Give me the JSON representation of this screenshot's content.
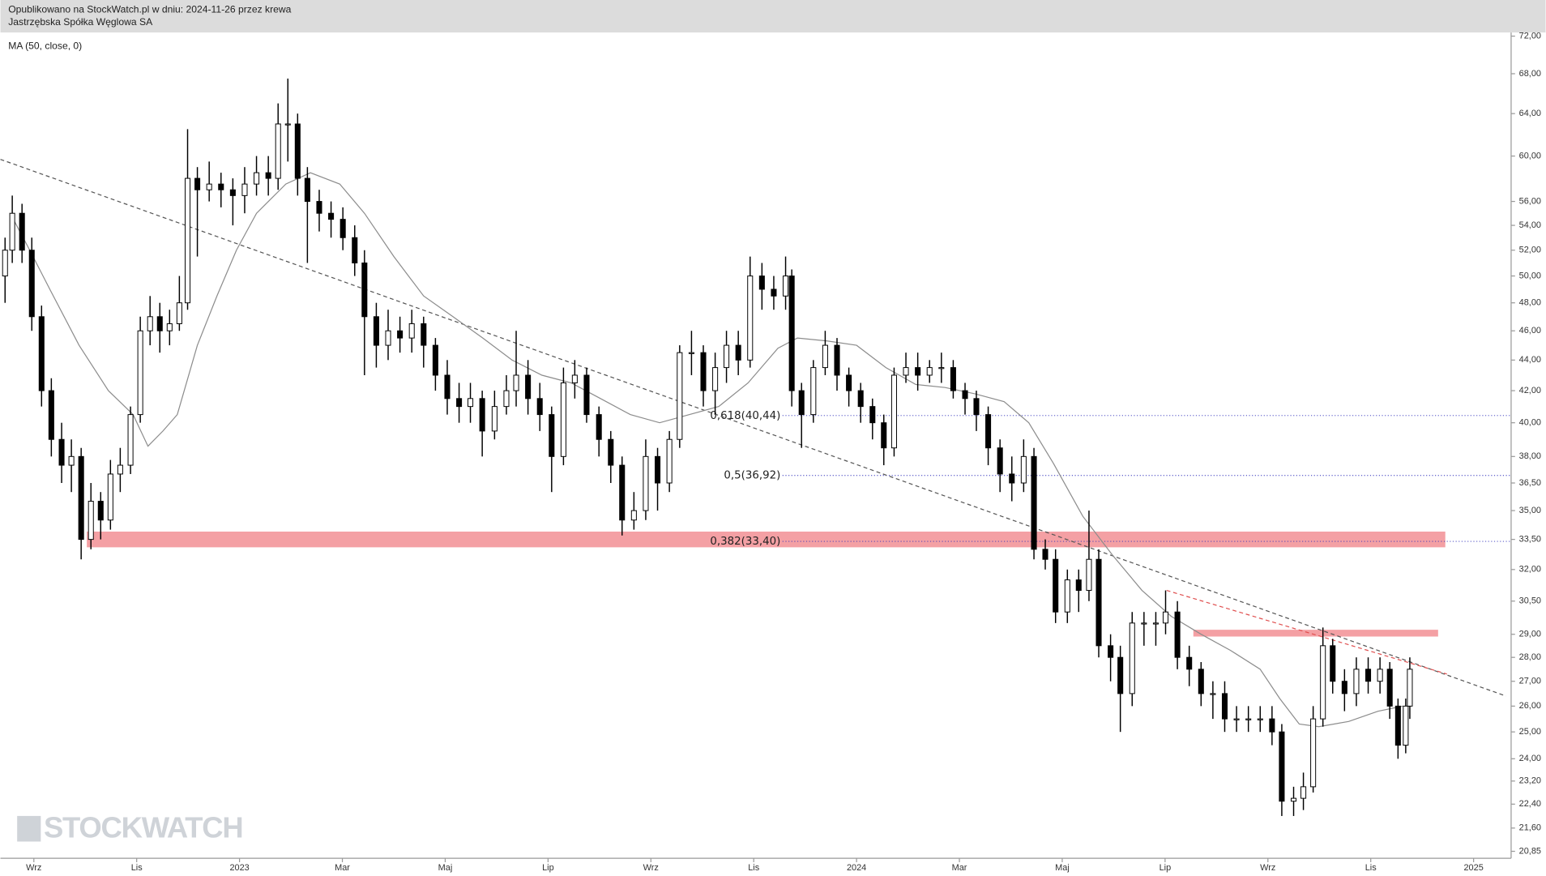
{
  "header": {
    "published": "Opublikowano na StockWatch.pl w dniu: 2024-11-26 przez krewa",
    "instrument": "Jastrzębska Spółka Węglowa SA"
  },
  "watermark": "STOCKWATCH",
  "chart_data": {
    "type": "candlestick",
    "log_scale": true,
    "color": "#000000",
    "x": [
      -0.56,
      -0.42,
      -0.23,
      -0.04,
      0.15,
      0.34,
      0.54,
      0.73,
      0.92,
      1.11,
      1.3,
      1.49,
      1.68,
      1.88,
      2.07,
      2.26,
      2.45,
      2.64,
      2.83,
      2.99,
      3.18,
      3.41,
      3.64,
      3.87,
      4.1,
      4.33,
      4.56,
      4.75,
      4.94,
      5.13,
      5.32,
      5.55,
      5.78,
      6.01,
      6.24,
      6.43,
      6.66,
      6.89,
      7.12,
      7.35,
      7.58,
      7.81,
      8.04,
      8.27,
      8.49,
      8.72,
      8.96,
      9.19,
      9.38,
      9.61,
      9.84,
      10.07,
      10.3,
      10.52,
      10.75,
      10.99,
      11.22,
      11.44,
      11.67,
      11.9,
      12.13,
      12.36,
      12.56,
      12.79,
      13.02,
      13.25,
      13.47,
      13.7,
      13.93,
      14.16,
      14.39,
      14.62,
      14.74,
      14.93,
      15.16,
      15.39,
      15.62,
      15.85,
      16.08,
      16.31,
      16.53,
      16.73,
      16.96,
      17.19,
      17.42,
      17.65,
      17.88,
      18.11,
      18.33,
      18.56,
      18.79,
      19.02,
      19.25,
      19.45,
      19.67,
      19.87,
      20.1,
      20.32,
      20.52,
      20.71,
      20.94,
      21.13,
      21.36,
      21.59,
      21.82,
      22.01,
      22.24,
      22.47,
      22.7,
      22.93,
      23.16,
      23.39,
      23.62,
      23.85,
      24.08,
      24.27,
      24.5,
      24.69,
      24.88,
      25.07,
      25.26,
      25.49,
      25.72,
      25.95,
      26.18,
      26.37,
      26.53,
      26.68,
      26.76
    ],
    "open": [
      50,
      52,
      55,
      52,
      47,
      42,
      39,
      37.5,
      38,
      33.5,
      35.5,
      34.5,
      37,
      37.5,
      40.5,
      46,
      47,
      46,
      46.5,
      48,
      58,
      57,
      57.5,
      57,
      56.5,
      57.5,
      58.5,
      58,
      63,
      63,
      58,
      56,
      55,
      54.5,
      53,
      51,
      47,
      45,
      46,
      45.5,
      46.5,
      45,
      43,
      41.5,
      41,
      41.5,
      39.5,
      41,
      42,
      43,
      41.5,
      40.5,
      38,
      42.5,
      43,
      40.5,
      39,
      37.5,
      34.5,
      35,
      38,
      36.5,
      39,
      44.5,
      44.5,
      42,
      43.5,
      45,
      44,
      50,
      49,
      48.5,
      50,
      42,
      40.5,
      43.5,
      45,
      43,
      42,
      41,
      40,
      38.5,
      43,
      43.5,
      43,
      43.5,
      43.5,
      42,
      41.5,
      40.5,
      38.5,
      37,
      36.5,
      38,
      33,
      32.5,
      30,
      31.5,
      31,
      32.5,
      28.5,
      28,
      26.5,
      29.5,
      29.5,
      29.5,
      30,
      28,
      27.5,
      26.5,
      26.5,
      25.5,
      25.5,
      25.5,
      25.5,
      25,
      22.5,
      22.6,
      23,
      25.5,
      28.5,
      27,
      26.5,
      27.5,
      27,
      27.5,
      26,
      24.5,
      26
    ],
    "high": [
      53,
      56.5,
      55.8,
      53,
      47.8,
      42.8,
      40,
      39,
      38.5,
      36.5,
      36,
      37.8,
      38.5,
      41,
      47,
      48.5,
      48,
      47.5,
      50,
      62.5,
      59,
      59.5,
      58.5,
      58,
      59,
      60,
      60,
      65,
      67.5,
      64,
      59,
      57,
      56,
      55.5,
      54,
      52,
      48,
      47.5,
      47,
      47.5,
      47,
      45.5,
      44,
      42.5,
      42.5,
      42,
      42,
      43,
      46,
      44,
      42.5,
      41,
      43.5,
      44,
      43.5,
      41,
      39.5,
      38,
      36,
      39,
      38.5,
      39.5,
      45,
      46,
      45,
      44.5,
      46,
      46,
      51.5,
      51,
      50,
      51.5,
      50.5,
      42.5,
      44,
      46,
      45.5,
      43.5,
      42.5,
      41.5,
      40.5,
      43.5,
      44.5,
      44.5,
      44,
      44.5,
      44,
      42.5,
      42,
      41,
      39,
      38,
      39,
      38.5,
      33.5,
      33,
      32,
      32,
      35,
      33,
      29,
      28.5,
      30,
      30,
      30,
      31,
      30.5,
      28.5,
      27.8,
      27,
      27,
      26,
      26,
      26,
      26,
      25.3,
      23,
      23.5,
      26,
      29.3,
      28.8,
      27.5,
      28,
      28,
      28,
      27.8,
      26.3,
      26.3,
      28
    ],
    "low": [
      48,
      51,
      51,
      46,
      41,
      38,
      36.5,
      36,
      32.5,
      33,
      33.5,
      34,
      36,
      37,
      40,
      45,
      44.5,
      45,
      46,
      47.5,
      51.5,
      56,
      55.5,
      54,
      55,
      56.5,
      56.5,
      57,
      59.5,
      56.5,
      51,
      53.5,
      53,
      52,
      50,
      43,
      43.5,
      44,
      44.5,
      44.5,
      43.5,
      42,
      40.5,
      40,
      40,
      38,
      39,
      40.5,
      41,
      40.5,
      39.5,
      36,
      37.5,
      41.5,
      40,
      38,
      36.5,
      33.7,
      34,
      34.5,
      35,
      36,
      38.5,
      43,
      41,
      40.5,
      42.5,
      43,
      43.5,
      47.5,
      47.5,
      47.5,
      41,
      38.5,
      40,
      43,
      42,
      41,
      40,
      39,
      37.5,
      38,
      42.5,
      42,
      42.5,
      42.5,
      41.5,
      40.5,
      39.5,
      37.5,
      36,
      35.5,
      36,
      32.5,
      32,
      29.5,
      29.5,
      30,
      30.5,
      28,
      27,
      25,
      26,
      28.5,
      28.5,
      29,
      27.5,
      26.8,
      26,
      25.5,
      25,
      25,
      25,
      25,
      24.5,
      22,
      22,
      22.2,
      22.8,
      25.2,
      26.5,
      25.8,
      26,
      26.5,
      26.5,
      25.5,
      24,
      24.2,
      25.5
    ],
    "close": [
      52,
      55,
      52,
      47,
      42,
      39,
      37.5,
      38,
      33.5,
      35.5,
      34.5,
      37,
      37.5,
      40.5,
      46,
      47,
      46,
      46.5,
      48,
      58,
      57,
      57.5,
      57,
      56.5,
      57.5,
      58.5,
      58,
      63,
      63,
      58,
      56,
      55,
      54.5,
      53,
      51,
      47,
      45,
      46,
      45.5,
      46.5,
      45,
      43,
      41.5,
      41,
      41.5,
      39.5,
      41,
      42,
      43,
      41.5,
      40.5,
      38,
      42.5,
      43,
      40.5,
      39,
      37.5,
      34.5,
      35,
      38,
      36.5,
      39,
      44.5,
      44.5,
      42,
      43.5,
      45,
      44,
      50,
      49,
      48.5,
      50,
      42,
      40.5,
      43.5,
      45,
      43,
      42,
      41,
      40,
      38.5,
      43,
      43.5,
      43,
      43.5,
      43.5,
      42,
      41.5,
      40.5,
      38.5,
      37,
      36.5,
      38,
      33,
      32.5,
      30,
      31.5,
      31,
      32.5,
      28.5,
      28,
      26.5,
      29.5,
      29.5,
      29.5,
      30,
      28,
      27.5,
      26.5,
      26.5,
      25.5,
      25.5,
      25.5,
      25.5,
      25,
      22.5,
      22.6,
      23,
      25.5,
      28.5,
      27,
      26.5,
      27.5,
      27,
      27.5,
      26,
      24.5,
      26,
      27.5
    ],
    "moving_average": {
      "name": "MA (50, close, 0)",
      "color": "#8c8c8c",
      "x": [
        -0.46,
        -0.08,
        0.31,
        0.88,
        1.45,
        1.93,
        2.22,
        2.51,
        2.79,
        3.18,
        3.56,
        3.94,
        4.33,
        4.9,
        5.38,
        5.95,
        6.43,
        7.0,
        7.58,
        8.15,
        8.73,
        9.3,
        9.88,
        10.45,
        11.02,
        11.6,
        12.17,
        12.75,
        13.32,
        13.89,
        14.47,
        14.85,
        15.43,
        16.0,
        16.57,
        17.15,
        17.72,
        18.3,
        18.87,
        19.35,
        19.83,
        20.4,
        20.98,
        21.55,
        22.12,
        22.7,
        23.27,
        23.85,
        24.23,
        24.61,
        24.99,
        25.57,
        26.14,
        26.62
      ],
      "values": [
        55,
        52,
        49,
        45,
        42,
        40.5,
        38.6,
        39.5,
        40.5,
        45,
        48.5,
        52,
        55,
        57.5,
        58.5,
        57.5,
        55,
        51.5,
        48.5,
        47,
        45.5,
        44,
        43,
        42.5,
        41.5,
        40.5,
        40,
        40.5,
        41,
        42.5,
        44.8,
        45.5,
        45.3,
        45,
        43.5,
        42.4,
        42.2,
        41.8,
        41.3,
        40,
        37.6,
        34.7,
        32.7,
        31,
        29.8,
        29,
        28.3,
        27.5,
        26.3,
        25.3,
        25.2,
        25.4,
        25.8,
        26
      ]
    },
    "trendlines": [
      {
        "x": [
          -0.65,
          28.63
        ],
        "y": [
          59.7,
          26.4
        ],
        "color": "#555555"
      },
      {
        "x": [
          22.03,
          27.48
        ],
        "y": [
          31.0,
          27.3
        ],
        "color": "#e05050"
      }
    ],
    "zones": [
      {
        "x": [
          1.03,
          27.45
        ],
        "y": [
          33.1,
          33.9
        ],
        "color": "#f4a0a4"
      },
      {
        "x": [
          22.55,
          27.31
        ],
        "y": [
          28.9,
          29.2
        ],
        "color": "#f4a0a4"
      }
    ],
    "fib_levels": [
      {
        "value": 40.44,
        "label": "0,618(40,44)"
      },
      {
        "value": 36.92,
        "label": "0,5(36,92)"
      },
      {
        "value": 33.4,
        "label": "0,382(33,40)"
      }
    ],
    "fib_start": 14.56,
    "fib_color": "#3333bb",
    "xlim": [
      -0.65,
      28.73
    ],
    "xticks": [
      {
        "value": 0,
        "label": "Wrz"
      },
      {
        "value": 2,
        "label": "Lis"
      },
      {
        "value": 4,
        "label": "2023"
      },
      {
        "value": 6,
        "label": "Mar"
      },
      {
        "value": 8,
        "label": "Maj"
      },
      {
        "value": 10,
        "label": "Lip"
      },
      {
        "value": 12,
        "label": "Wrz"
      },
      {
        "value": 14,
        "label": "Lis"
      },
      {
        "value": 16,
        "label": "2024"
      },
      {
        "value": 18,
        "label": "Mar"
      },
      {
        "value": 20,
        "label": "Maj"
      },
      {
        "value": 22,
        "label": "Lip"
      },
      {
        "value": 24,
        "label": "Wrz"
      },
      {
        "value": 26,
        "label": "Lis"
      },
      {
        "value": 28,
        "label": "2025"
      }
    ],
    "ylim": [
      20.63,
      72.4
    ],
    "yticks": [
      {
        "value": 72,
        "label": "72,00"
      },
      {
        "value": 68,
        "label": "68,00"
      },
      {
        "value": 64,
        "label": "64,00"
      },
      {
        "value": 60,
        "label": "60,00"
      },
      {
        "value": 56,
        "label": "56,00"
      },
      {
        "value": 54,
        "label": "54,00"
      },
      {
        "value": 52,
        "label": "52,00"
      },
      {
        "value": 50,
        "label": "50,00"
      },
      {
        "value": 48,
        "label": "48,00"
      },
      {
        "value": 46,
        "label": "46,00"
      },
      {
        "value": 44,
        "label": "44,00"
      },
      {
        "value": 42,
        "label": "42,00"
      },
      {
        "value": 40,
        "label": "40,00"
      },
      {
        "value": 38,
        "label": "38,00"
      },
      {
        "value": 36.5,
        "label": "36,50"
      },
      {
        "value": 35,
        "label": "35,00"
      },
      {
        "value": 33.5,
        "label": "33,50"
      },
      {
        "value": 32,
        "label": "32,00"
      },
      {
        "value": 30.5,
        "label": "30,50"
      },
      {
        "value": 29,
        "label": "29,00"
      },
      {
        "value": 28,
        "label": "28,00"
      },
      {
        "value": 27,
        "label": "27,00"
      },
      {
        "value": 26,
        "label": "26,00"
      },
      {
        "value": 25,
        "label": "25,00"
      },
      {
        "value": 24,
        "label": "24,00"
      },
      {
        "value": 23.2,
        "label": "23,20"
      },
      {
        "value": 22.4,
        "label": "22,40"
      },
      {
        "value": 21.6,
        "label": "21,60"
      },
      {
        "value": 20.85,
        "label": "20,85"
      }
    ]
  }
}
